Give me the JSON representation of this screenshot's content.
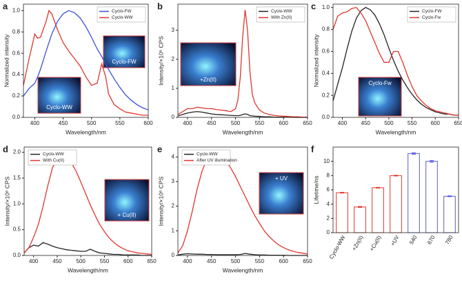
{
  "chart_data": [
    {
      "type": "line",
      "label": "a",
      "xlabel": "Wavelength/nm",
      "ylabel": "Normalized intensity",
      "x": [
        380,
        390,
        400,
        405,
        410,
        420,
        425,
        430,
        440,
        450,
        460,
        470,
        480,
        490,
        500,
        510,
        518,
        525,
        530,
        540,
        550,
        560,
        570,
        580,
        590,
        600
      ],
      "series": [
        {
          "name": "Cyclo-FW",
          "color": "#3b4fd8",
          "values": [
            0.2,
            0.27,
            0.32,
            0.38,
            0.45,
            0.62,
            0.7,
            0.78,
            0.9,
            0.97,
            1.0,
            0.98,
            0.93,
            0.85,
            0.75,
            0.64,
            0.57,
            0.5,
            0.45,
            0.36,
            0.28,
            0.21,
            0.16,
            0.12,
            0.09,
            0.07
          ]
        },
        {
          "name": "Cyclo-WW",
          "color": "#e0342c",
          "values": [
            0.3,
            0.55,
            0.78,
            0.74,
            0.75,
            0.9,
            1.0,
            0.97,
            0.82,
            0.7,
            0.62,
            0.55,
            0.48,
            0.38,
            0.3,
            0.32,
            0.5,
            0.38,
            0.22,
            0.12,
            0.08,
            0.05,
            0.04,
            0.03,
            0.02,
            0.02
          ]
        }
      ],
      "xlim": [
        380,
        600
      ],
      "xticks": [
        400,
        450,
        500,
        550,
        600
      ],
      "ylim": [
        0,
        1.06
      ],
      "yticks": [
        {
          "value": 0,
          "label": "0.0"
        },
        0.2,
        0.4,
        0.6,
        0.8,
        {
          "value": 1,
          "label": "1.0"
        }
      ],
      "legend": "upper right",
      "annotations": [
        "Cyclo-FW",
        "Cyclo-WW"
      ]
    },
    {
      "type": "line",
      "label": "b",
      "xlabel": "Wavelength/nm",
      "ylabel": "Intensity/×10⁶ CPS",
      "x": [
        380,
        390,
        400,
        410,
        420,
        430,
        440,
        450,
        460,
        470,
        480,
        490,
        500,
        505,
        510,
        515,
        520,
        525,
        530,
        535,
        540,
        550,
        560,
        570,
        580,
        590,
        600,
        610,
        620,
        630,
        640,
        650
      ],
      "series": [
        {
          "name": "Cyclo-WW",
          "color": "#222222",
          "values": [
            0.05,
            0.1,
            0.15,
            0.18,
            0.2,
            0.18,
            0.15,
            0.12,
            0.1,
            0.09,
            0.08,
            0.07,
            0.06,
            0.06,
            0.07,
            0.1,
            0.12,
            0.1,
            0.06,
            0.05,
            0.04,
            0.03,
            0.02,
            0.02,
            0.01,
            0.01,
            0.01,
            0.01,
            0,
            0,
            0,
            0
          ]
        },
        {
          "name": "With Zn(II)",
          "color": "#e0342c",
          "values": [
            0.1,
            0.2,
            0.3,
            0.3,
            0.35,
            0.33,
            0.3,
            0.3,
            0.27,
            0.25,
            0.23,
            0.2,
            0.3,
            0.6,
            1.4,
            2.8,
            3.7,
            3.0,
            1.6,
            0.8,
            0.5,
            0.25,
            0.15,
            0.1,
            0.07,
            0.05,
            0.04,
            0.03,
            0.02,
            0.02,
            0.01,
            0.01
          ]
        }
      ],
      "xlim": [
        380,
        650
      ],
      "xticks": [
        400,
        450,
        500,
        550,
        600,
        650
      ],
      "ylim": [
        0,
        3.9
      ],
      "yticks": [
        0,
        1,
        2,
        3
      ],
      "legend": "upper right",
      "annotations": [
        "+Zn(II)"
      ]
    },
    {
      "type": "line",
      "label": "c",
      "xlabel": "Wavelength/nm",
      "ylabel": "Normalized intensity",
      "x": [
        380,
        390,
        400,
        410,
        420,
        430,
        440,
        450,
        460,
        470,
        480,
        490,
        500,
        510,
        520,
        530,
        540,
        550,
        560,
        570,
        580,
        590,
        600,
        610,
        620,
        630,
        640,
        650
      ],
      "series": [
        {
          "name": "Cyclo-FW",
          "color": "#222222",
          "values": [
            0.15,
            0.3,
            0.45,
            0.62,
            0.78,
            0.9,
            0.97,
            1.0,
            0.98,
            0.93,
            0.85,
            0.75,
            0.63,
            0.52,
            0.42,
            0.34,
            0.27,
            0.21,
            0.16,
            0.12,
            0.09,
            0.07,
            0.05,
            0.04,
            0.03,
            0.03,
            0.02,
            0.02
          ]
        },
        {
          "name": "Cyclo-Fw",
          "color": "#e0342c",
          "values": [
            0.8,
            0.92,
            0.95,
            0.96,
            0.99,
            1.0,
            0.95,
            0.88,
            0.78,
            0.68,
            0.58,
            0.5,
            0.5,
            0.6,
            0.6,
            0.5,
            0.38,
            0.28,
            0.2,
            0.15,
            0.11,
            0.08,
            0.06,
            0.05,
            0.04,
            0.03,
            0.02,
            0.02
          ]
        }
      ],
      "xlim": [
        380,
        650
      ],
      "xticks": [
        400,
        450,
        500,
        550,
        600,
        650
      ],
      "ylim": [
        0,
        1.03
      ],
      "yticks": [
        {
          "value": 0,
          "label": "0.0"
        },
        0.2,
        0.4,
        0.6,
        0.8,
        {
          "value": 1,
          "label": "1.0"
        }
      ],
      "legend": "upper right",
      "annotations": [
        "Cyclo-Fw"
      ]
    },
    {
      "type": "line",
      "label": "d",
      "xlabel": "Wavelength/nm",
      "ylabel": "Intensity/×10⁶ CPS",
      "x": [
        380,
        390,
        400,
        410,
        420,
        430,
        440,
        450,
        460,
        470,
        480,
        490,
        500,
        510,
        520,
        530,
        540,
        550,
        560,
        570,
        580,
        590,
        600,
        610,
        620,
        630,
        640,
        650
      ],
      "series": [
        {
          "name": "Cyclo-WW",
          "color": "#222222",
          "values": [
            0.05,
            0.15,
            0.2,
            0.18,
            0.25,
            0.22,
            0.18,
            0.15,
            0.13,
            0.11,
            0.1,
            0.09,
            0.08,
            0.08,
            0.12,
            0.08,
            0.05,
            0.04,
            0.03,
            0.02,
            0.02,
            0.01,
            0.01,
            0.01,
            0.01,
            0,
            0,
            0
          ]
        },
        {
          "name": "With Cu(II)",
          "color": "#e0342c",
          "values": [
            0.05,
            0.15,
            0.35,
            0.6,
            0.95,
            1.35,
            1.7,
            1.88,
            1.93,
            1.9,
            1.8,
            1.63,
            1.42,
            1.2,
            0.98,
            0.78,
            0.6,
            0.46,
            0.34,
            0.25,
            0.18,
            0.13,
            0.09,
            0.07,
            0.05,
            0.04,
            0.03,
            0.02
          ]
        }
      ],
      "xlim": [
        380,
        650
      ],
      "xticks": [
        400,
        450,
        500,
        550,
        600,
        650
      ],
      "ylim": [
        0,
        2.1
      ],
      "yticks": [
        {
          "value": 0,
          "label": "0.0"
        },
        0.5,
        {
          "value": 1,
          "label": "1.0"
        },
        1.5,
        {
          "value": 2,
          "label": "2.0"
        }
      ],
      "legend": "upper left",
      "annotations": [
        "+ Cu(II)"
      ]
    },
    {
      "type": "line",
      "label": "e",
      "xlabel": "Wavelength/nm",
      "ylabel": "Intensity/×10⁶ CPS",
      "x": [
        380,
        390,
        400,
        410,
        420,
        430,
        440,
        450,
        460,
        470,
        480,
        490,
        500,
        510,
        520,
        530,
        540,
        550,
        560,
        570,
        580,
        590,
        600,
        610,
        620,
        630,
        640,
        650
      ],
      "series": [
        {
          "name": "Cyclo-WW",
          "color": "#222222",
          "values": [
            0.02,
            0.05,
            0.07,
            0.06,
            0.05,
            0.05,
            0.04,
            0.04,
            0.03,
            0.03,
            0.03,
            0.03,
            0.03,
            0.04,
            0.08,
            0.05,
            0.03,
            0.02,
            0.02,
            0.01,
            0.01,
            0.01,
            0.01,
            0,
            0,
            0,
            0,
            0
          ]
        },
        {
          "name": "After UV illumination",
          "color": "#e0342c",
          "values": [
            0.1,
            0.4,
            1.0,
            1.8,
            2.7,
            3.4,
            3.9,
            4.12,
            4.15,
            4.05,
            3.85,
            3.55,
            3.2,
            2.8,
            2.4,
            2.0,
            1.62,
            1.3,
            1.0,
            0.77,
            0.58,
            0.43,
            0.32,
            0.23,
            0.17,
            0.12,
            0.09,
            0.06
          ]
        }
      ],
      "xlim": [
        380,
        650
      ],
      "xticks": [
        400,
        450,
        500,
        550,
        600,
        650
      ],
      "ylim": [
        0,
        4.4
      ],
      "yticks": [
        0,
        1,
        2,
        3,
        4
      ],
      "legend": "upper left",
      "annotations": [
        "+ UV"
      ]
    },
    {
      "type": "bar",
      "label": "f",
      "ylabel": "Lifetime/ns",
      "categories": [
        "Cyclo-WW",
        "+Zn(II)",
        "+Cu(II)",
        "+UV",
        "540",
        "670",
        "780"
      ],
      "values": [
        5.6,
        3.6,
        6.3,
        8.0,
        11.1,
        10.0,
        5.1
      ],
      "errors": [
        0.05,
        0.06,
        0.05,
        0.05,
        0.1,
        0.12,
        0.06
      ],
      "colors": [
        "#e0342c",
        "#e0342c",
        "#e0342c",
        "#e0342c",
        "#5a5ae6",
        "#5a5ae6",
        "#5a5ae6"
      ],
      "ylim": [
        0,
        12
      ],
      "yticks": [
        0,
        2,
        4,
        6,
        8,
        10
      ]
    }
  ]
}
